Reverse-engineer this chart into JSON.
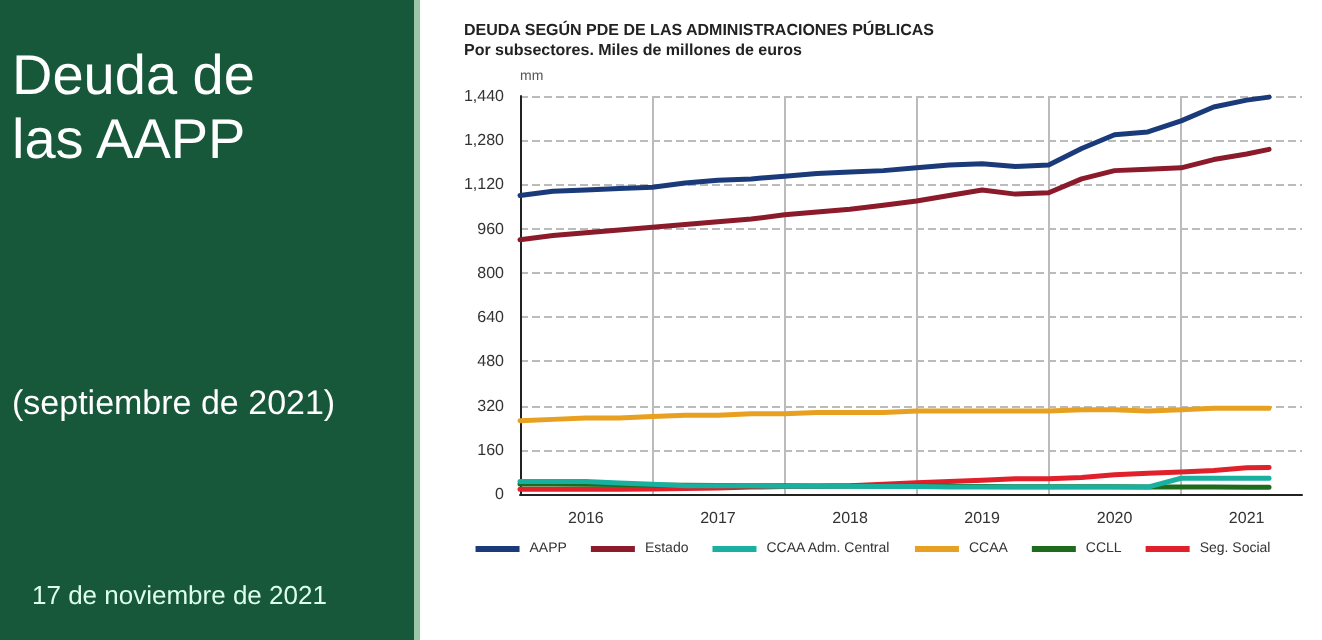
{
  "chart_data": {
    "type": "line",
    "title": "DEUDA SEGÚN PDE DE LAS ADMINISTRACIONES PÚBLICAS",
    "subtitle": "Por subsectores. Miles de millones de euros",
    "ylabel": "mm",
    "annotations": [
      "Deuda de las AAPP",
      "(septiembre de 2021)",
      "17 de noviembre de 2021"
    ],
    "x": [
      "2016-01",
      "2016-04",
      "2016-07",
      "2016-10",
      "2017-01",
      "2017-04",
      "2017-07",
      "2017-10",
      "2018-01",
      "2018-04",
      "2018-07",
      "2018-10",
      "2019-01",
      "2019-04",
      "2019-07",
      "2019-10",
      "2020-01",
      "2020-04",
      "2020-07",
      "2020-10",
      "2021-01",
      "2021-04",
      "2021-07",
      "2021-09"
    ],
    "series": [
      {
        "name": "AAPP",
        "color": "#1a3a7a",
        "values": [
          1080,
          1095,
          1100,
          1105,
          1110,
          1125,
          1135,
          1140,
          1150,
          1160,
          1165,
          1170,
          1180,
          1190,
          1195,
          1185,
          1190,
          1250,
          1300,
          1310,
          1350,
          1400,
          1425,
          1436
        ]
      },
      {
        "name": "Estado",
        "color": "#8b1a2b",
        "values": [
          920,
          935,
          945,
          955,
          965,
          975,
          985,
          995,
          1010,
          1020,
          1030,
          1045,
          1060,
          1080,
          1100,
          1085,
          1090,
          1140,
          1170,
          1175,
          1180,
          1210,
          1230,
          1247
        ]
      },
      {
        "name": "CCAA Adm. Central",
        "color": "#1ab0a0",
        "values": [
          45,
          45,
          45,
          40,
          35,
          30,
          30,
          30,
          28,
          28,
          28,
          27,
          27,
          25,
          25,
          25,
          25,
          25,
          25,
          25,
          57,
          57,
          57,
          57
        ]
      },
      {
        "name": "CCAA",
        "color": "#e8a020",
        "values": [
          265,
          270,
          275,
          275,
          280,
          285,
          285,
          290,
          290,
          295,
          295,
          295,
          300,
          300,
          300,
          300,
          300,
          305,
          305,
          300,
          305,
          310,
          310,
          310
        ]
      },
      {
        "name": "CCLL",
        "color": "#1e6b1e",
        "values": [
          36,
          36,
          35,
          34,
          33,
          32,
          31,
          30,
          30,
          29,
          29,
          28,
          28,
          27,
          27,
          26,
          26,
          26,
          26,
          25,
          25,
          25,
          24,
          24
        ]
      },
      {
        "name": "Seg. Social",
        "color": "#e0202a",
        "values": [
          17,
          17,
          17,
          17,
          18,
          20,
          22,
          25,
          27,
          28,
          30,
          35,
          41,
          45,
          50,
          55,
          55,
          60,
          70,
          75,
          80,
          85,
          95,
          96
        ]
      }
    ],
    "xlim": [
      "2016-01",
      "2021-12"
    ],
    "xticks": [
      {
        "value": "2016-07",
        "label": "2016"
      },
      {
        "value": "2017-01",
        "label": null
      },
      {
        "value": "2017-07",
        "label": "2017"
      },
      {
        "value": "2018-01",
        "label": null
      },
      {
        "value": "2018-07",
        "label": "2018"
      },
      {
        "value": "2019-01",
        "label": null
      },
      {
        "value": "2019-07",
        "label": "2019"
      },
      {
        "value": "2020-01",
        "label": null
      },
      {
        "value": "2020-07",
        "label": "2020"
      },
      {
        "value": "2021-01",
        "label": null
      },
      {
        "value": "2021-07",
        "label": "2021"
      }
    ],
    "ylim": [
      0,
      1440
    ],
    "yticks": [
      0,
      160,
      320,
      480,
      640,
      800,
      960,
      {
        "value": 1120,
        "label": "1,120"
      },
      {
        "value": 1280,
        "label": "1,280"
      },
      {
        "value": 1440,
        "label": "1,440"
      }
    ],
    "grid": true,
    "legend": "bottom",
    "marker": "none",
    "line_style": "solid"
  }
}
